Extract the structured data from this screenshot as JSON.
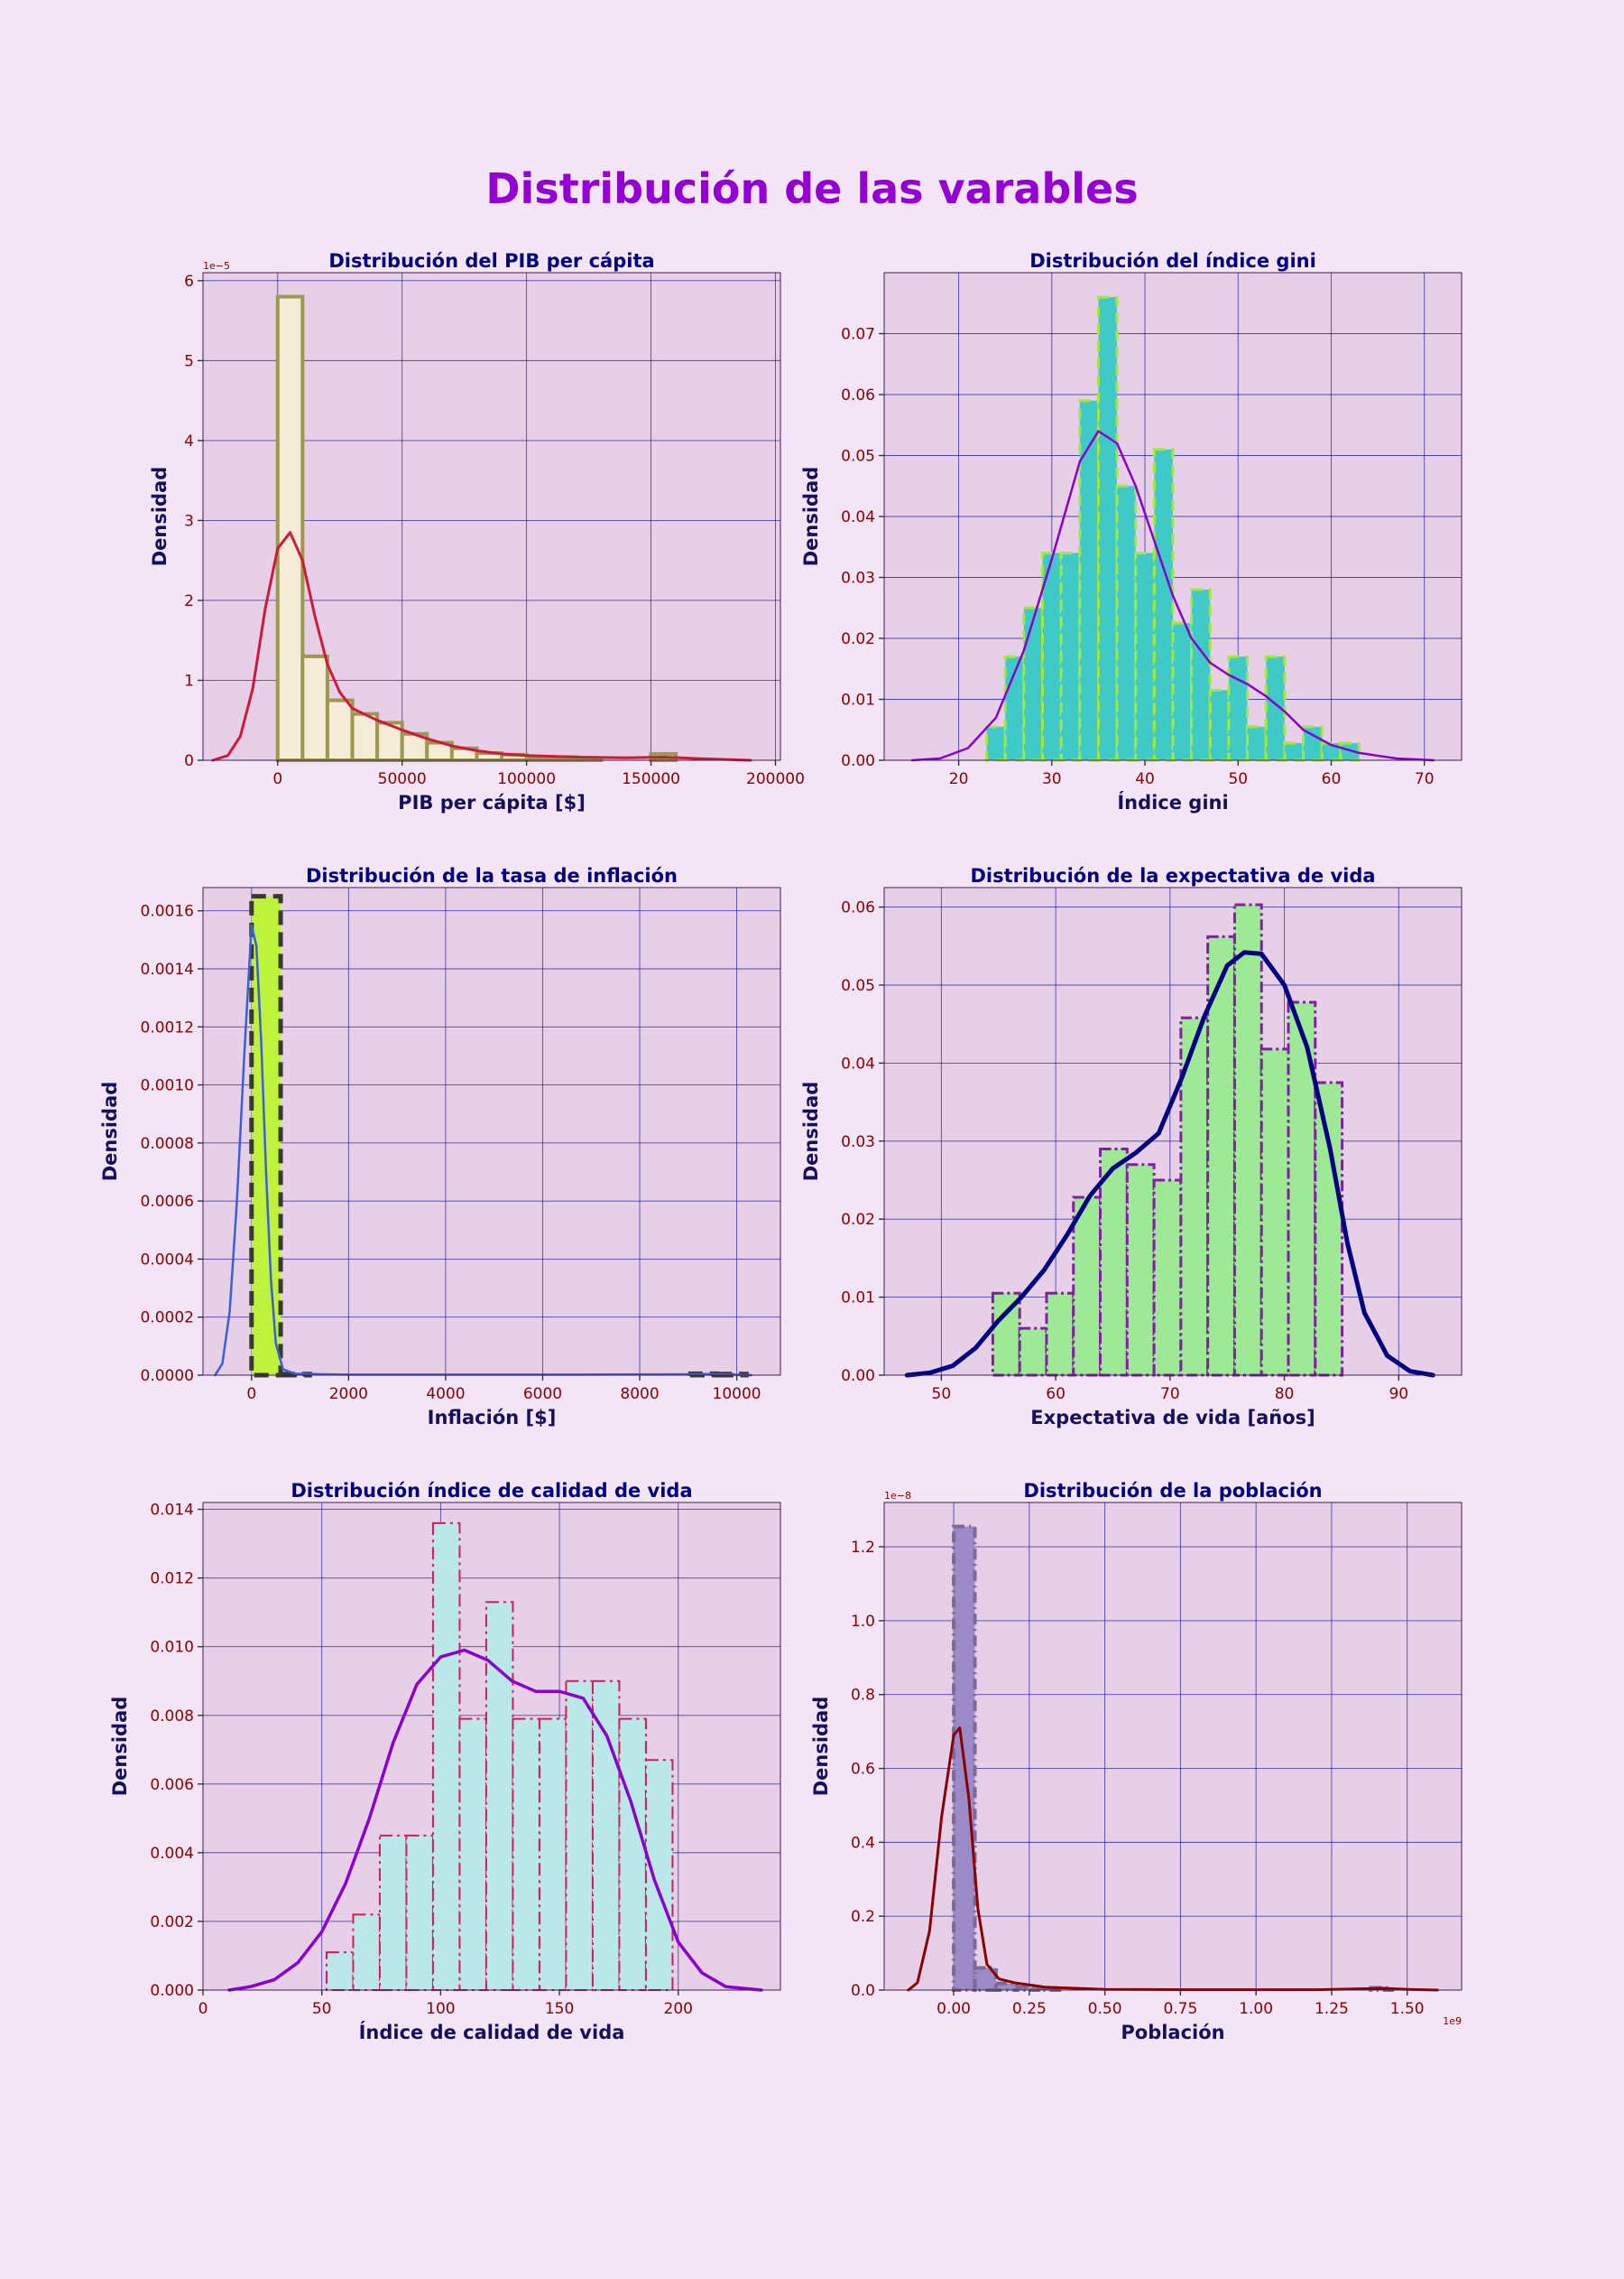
{
  "title": "Distribución de las varables",
  "colors": {
    "background": "#f3e5f5",
    "plot_background": "#e7cfe8",
    "title": "#9400d3",
    "subtitle": "#000080",
    "tick_labels": "#8b0000"
  },
  "chart_data": [
    {
      "type": "bar",
      "title": "Distribución del PIB per cápita",
      "xlabel": "PIB per cápita [$]",
      "ylabel": "Densidad",
      "y_exponent_label": "1e−5",
      "x_exponent_label": "",
      "xlim": [
        -30000,
        202000
      ],
      "ylim": [
        0,
        6.1
      ],
      "xticks": [
        0,
        50000,
        100000,
        150000,
        200000
      ],
      "xtick_labels": [
        "0",
        "50000",
        "100000",
        "150000",
        "200000"
      ],
      "yticks": [
        0,
        1,
        2,
        3,
        4,
        5,
        6
      ],
      "ytick_labels": [
        "0",
        "1",
        "2",
        "3",
        "4",
        "5",
        "6"
      ],
      "style": {
        "fill": "#f5ecd7",
        "edge": "#9c9850",
        "dash": "",
        "line_width": 4,
        "kde_color": "#cc1a3a",
        "kde_width": 3
      },
      "bin_width": 10000,
      "bins": [
        [
          0,
          5.8
        ],
        [
          10000,
          1.3
        ],
        [
          20000,
          0.75
        ],
        [
          30000,
          0.58
        ],
        [
          40000,
          0.47
        ],
        [
          50000,
          0.33
        ],
        [
          60000,
          0.22
        ],
        [
          70000,
          0.15
        ],
        [
          80000,
          0.09
        ],
        [
          90000,
          0.07
        ],
        [
          100000,
          0.04
        ],
        [
          110000,
          0.04
        ],
        [
          120000,
          0.02
        ],
        [
          150000,
          0.08
        ]
      ],
      "kde": [
        [
          -26000,
          0.0
        ],
        [
          -20000,
          0.06
        ],
        [
          -15000,
          0.3
        ],
        [
          -10000,
          0.9
        ],
        [
          -5000,
          1.9
        ],
        [
          0,
          2.65
        ],
        [
          5000,
          2.85
        ],
        [
          10000,
          2.5
        ],
        [
          15000,
          1.8
        ],
        [
          20000,
          1.2
        ],
        [
          25000,
          0.85
        ],
        [
          30000,
          0.65
        ],
        [
          40000,
          0.5
        ],
        [
          50000,
          0.38
        ],
        [
          60000,
          0.27
        ],
        [
          70000,
          0.18
        ],
        [
          80000,
          0.12
        ],
        [
          90000,
          0.08
        ],
        [
          100000,
          0.06
        ],
        [
          110000,
          0.05
        ],
        [
          120000,
          0.04
        ],
        [
          140000,
          0.03
        ],
        [
          155000,
          0.04
        ],
        [
          170000,
          0.02
        ],
        [
          190000,
          0.0
        ]
      ]
    },
    {
      "type": "bar",
      "title": "Distribución del índice gini",
      "xlabel": "Índice gini",
      "ylabel": "Densidad",
      "y_exponent_label": "",
      "x_exponent_label": "",
      "xlim": [
        12,
        74
      ],
      "ylim": [
        0,
        0.08
      ],
      "xticks": [
        20,
        30,
        40,
        50,
        60,
        70
      ],
      "xtick_labels": [
        "20",
        "30",
        "40",
        "50",
        "60",
        "70"
      ],
      "yticks": [
        0,
        0.01,
        0.02,
        0.03,
        0.04,
        0.05,
        0.06,
        0.07
      ],
      "ytick_labels": [
        "0.00",
        "0.01",
        "0.02",
        "0.03",
        "0.04",
        "0.05",
        "0.06",
        "0.07"
      ],
      "style": {
        "fill": "#3fcac8",
        "edge": "#a3e83a",
        "dash": "12,7",
        "line_width": 3,
        "kde_color": "#8a00cc",
        "kde_width": 2.5
      },
      "bin_width": 2,
      "bins": [
        [
          23,
          0.0055
        ],
        [
          25,
          0.017
        ],
        [
          27,
          0.025
        ],
        [
          29,
          0.034
        ],
        [
          31,
          0.034
        ],
        [
          33,
          0.059
        ],
        [
          35,
          0.076
        ],
        [
          37,
          0.045
        ],
        [
          39,
          0.034
        ],
        [
          41,
          0.051
        ],
        [
          43,
          0.0225
        ],
        [
          45,
          0.028
        ],
        [
          47,
          0.0115
        ],
        [
          49,
          0.017
        ],
        [
          51,
          0.0055
        ],
        [
          53,
          0.017
        ],
        [
          55,
          0.0028
        ],
        [
          57,
          0.0055
        ],
        [
          59,
          0.0028
        ],
        [
          61,
          0.0028
        ]
      ],
      "kde": [
        [
          15,
          0.0
        ],
        [
          18,
          0.0003
        ],
        [
          21,
          0.002
        ],
        [
          24,
          0.007
        ],
        [
          27,
          0.018
        ],
        [
          30,
          0.033
        ],
        [
          33,
          0.049
        ],
        [
          35,
          0.054
        ],
        [
          37,
          0.052
        ],
        [
          39,
          0.045
        ],
        [
          41,
          0.036
        ],
        [
          43,
          0.027
        ],
        [
          45,
          0.02
        ],
        [
          47,
          0.016
        ],
        [
          49,
          0.014
        ],
        [
          51,
          0.0125
        ],
        [
          53,
          0.0105
        ],
        [
          55,
          0.008
        ],
        [
          57,
          0.005
        ],
        [
          60,
          0.0025
        ],
        [
          63,
          0.0012
        ],
        [
          67,
          0.0003
        ],
        [
          71,
          0.0
        ]
      ]
    },
    {
      "type": "bar",
      "title": "Distribución de la tasa de inflación",
      "xlabel": "Inflación [$]",
      "ylabel": "Densidad",
      "y_exponent_label": "",
      "x_exponent_label": "",
      "xlim": [
        -1000,
        10900
      ],
      "ylim": [
        0,
        0.00168
      ],
      "xticks": [
        0,
        2000,
        4000,
        6000,
        8000,
        10000
      ],
      "xtick_labels": [
        "0",
        "2000",
        "4000",
        "6000",
        "8000",
        "10000"
      ],
      "yticks": [
        0,
        0.0002,
        0.0004,
        0.0006,
        0.0008,
        0.001,
        0.0012,
        0.0014,
        0.0016
      ],
      "ytick_labels": [
        "0.0000",
        "0.0002",
        "0.0004",
        "0.0006",
        "0.0008",
        "0.0010",
        "0.0012",
        "0.0014",
        "0.0016"
      ],
      "style": {
        "fill": "#bff23a",
        "edge": "#3a3a2a",
        "dash": "16,8",
        "line_width": 5,
        "kde_color": "#3a5fd9",
        "kde_width": 2.5
      },
      "bin_width": 600,
      "bins": [
        [
          0,
          0.00165
        ],
        [
          600,
          4e-06
        ],
        [
          9000,
          5e-06
        ],
        [
          9600,
          4e-06
        ]
      ],
      "kde": [
        [
          -750,
          0.0
        ],
        [
          -600,
          4e-05
        ],
        [
          -450,
          0.00022
        ],
        [
          -300,
          0.0006
        ],
        [
          -150,
          0.0011
        ],
        [
          0,
          0.00155
        ],
        [
          100,
          0.00148
        ],
        [
          200,
          0.00115
        ],
        [
          300,
          0.0007
        ],
        [
          400,
          0.00033
        ],
        [
          500,
          0.00011
        ],
        [
          650,
          2e-05
        ],
        [
          900,
          5e-06
        ],
        [
          2000,
          2e-06
        ],
        [
          6000,
          2e-06
        ],
        [
          9000,
          3e-06
        ],
        [
          9500,
          4e-06
        ],
        [
          10300,
          0.0
        ]
      ]
    },
    {
      "type": "bar",
      "title": "Distribución de la expectativa de vida",
      "xlabel": "Expectativa de vida [años]",
      "ylabel": "Densidad",
      "y_exponent_label": "",
      "x_exponent_label": "",
      "xlim": [
        45,
        95.5
      ],
      "ylim": [
        0,
        0.0625
      ],
      "xticks": [
        50,
        60,
        70,
        80,
        90
      ],
      "xtick_labels": [
        "50",
        "60",
        "70",
        "80",
        "90"
      ],
      "yticks": [
        0,
        0.01,
        0.02,
        0.03,
        0.04,
        0.05,
        0.06
      ],
      "ytick_labels": [
        "0.00",
        "0.01",
        "0.02",
        "0.03",
        "0.04",
        "0.05",
        "0.06"
      ],
      "style": {
        "fill": "#9de996",
        "edge": "#8020a0",
        "dash": "12,4,3,4",
        "line_width": 3,
        "kde_color": "#000080",
        "kde_width": 5
      },
      "bin_width": 2.35,
      "bins": [
        [
          54.5,
          0.0105
        ],
        [
          56.85,
          0.006
        ],
        [
          59.2,
          0.0105
        ],
        [
          61.55,
          0.0228
        ],
        [
          63.9,
          0.029
        ],
        [
          66.25,
          0.027
        ],
        [
          68.6,
          0.025
        ],
        [
          70.95,
          0.0458
        ],
        [
          73.3,
          0.0562
        ],
        [
          75.65,
          0.0603
        ],
        [
          78,
          0.0418
        ],
        [
          80.35,
          0.0478
        ],
        [
          82.7,
          0.0375
        ]
      ],
      "kde": [
        [
          47,
          0.0
        ],
        [
          49,
          0.0003
        ],
        [
          51,
          0.0012
        ],
        [
          53,
          0.0035
        ],
        [
          55,
          0.007
        ],
        [
          57,
          0.01
        ],
        [
          59,
          0.0135
        ],
        [
          61,
          0.018
        ],
        [
          63,
          0.023
        ],
        [
          65,
          0.0265
        ],
        [
          67,
          0.0285
        ],
        [
          69,
          0.031
        ],
        [
          71,
          0.038
        ],
        [
          73,
          0.046
        ],
        [
          75,
          0.0525
        ],
        [
          76.5,
          0.0542
        ],
        [
          78,
          0.054
        ],
        [
          80,
          0.05
        ],
        [
          82,
          0.042
        ],
        [
          84,
          0.029
        ],
        [
          85.5,
          0.017
        ],
        [
          87,
          0.008
        ],
        [
          89,
          0.0025
        ],
        [
          91,
          0.0005
        ],
        [
          93,
          0.0
        ]
      ]
    },
    {
      "type": "bar",
      "title": "Distribución índice de calidad de vida",
      "xlabel": "Índice de calidad de vida",
      "ylabel": "Densidad",
      "y_exponent_label": "",
      "x_exponent_label": "",
      "xlim": [
        0,
        243
      ],
      "ylim": [
        0,
        0.0142
      ],
      "xticks": [
        0,
        50,
        100,
        150,
        200
      ],
      "xtick_labels": [
        "0",
        "50",
        "100",
        "150",
        "200"
      ],
      "yticks": [
        0,
        0.002,
        0.004,
        0.006,
        0.008,
        0.01,
        0.012,
        0.014
      ],
      "ytick_labels": [
        "0.000",
        "0.002",
        "0.004",
        "0.006",
        "0.008",
        "0.010",
        "0.012",
        "0.014"
      ],
      "style": {
        "fill": "#bae8e8",
        "edge": "#d91a5a",
        "dash": "14,5,3,5",
        "line_width": 2,
        "kde_color": "#8a00cc",
        "kde_width": 3.5
      },
      "bin_width": 11.2,
      "bins": [
        [
          52,
          0.0011
        ],
        [
          63.2,
          0.0022
        ],
        [
          74.4,
          0.0045
        ],
        [
          85.6,
          0.0045
        ],
        [
          96.8,
          0.0136
        ],
        [
          108,
          0.0079
        ],
        [
          119.2,
          0.0113
        ],
        [
          130.4,
          0.0079
        ],
        [
          141.6,
          0.0079
        ],
        [
          152.8,
          0.009
        ],
        [
          164,
          0.009
        ],
        [
          175.2,
          0.0079
        ],
        [
          186.4,
          0.0067
        ]
      ],
      "kde": [
        [
          11,
          0.0
        ],
        [
          20,
          0.0001
        ],
        [
          30,
          0.0003
        ],
        [
          40,
          0.0008
        ],
        [
          50,
          0.0017
        ],
        [
          60,
          0.0031
        ],
        [
          70,
          0.005
        ],
        [
          80,
          0.0072
        ],
        [
          90,
          0.0089
        ],
        [
          100,
          0.0097
        ],
        [
          110,
          0.0099
        ],
        [
          120,
          0.0096
        ],
        [
          130,
          0.009
        ],
        [
          140,
          0.0087
        ],
        [
          150,
          0.0087
        ],
        [
          160,
          0.0085
        ],
        [
          170,
          0.0074
        ],
        [
          180,
          0.0055
        ],
        [
          190,
          0.0032
        ],
        [
          200,
          0.0014
        ],
        [
          210,
          0.0005
        ],
        [
          220,
          0.0001
        ],
        [
          235,
          0.0
        ]
      ]
    },
    {
      "type": "bar",
      "title": "Distribución de la población",
      "xlabel": "Población",
      "ylabel": "Densidad",
      "y_exponent_label": "1e−8",
      "x_exponent_label": "1e9",
      "xlim": [
        -0.23,
        1.68
      ],
      "ylim": [
        0,
        1.32
      ],
      "xticks": [
        0,
        0.25,
        0.5,
        0.75,
        1.0,
        1.25,
        1.5
      ],
      "xtick_labels": [
        "0.00",
        "0.25",
        "0.50",
        "0.75",
        "1.00",
        "1.25",
        "1.50"
      ],
      "yticks": [
        0,
        0.2,
        0.4,
        0.6,
        0.8,
        1.0,
        1.2
      ],
      "ytick_labels": [
        "0.0",
        "0.2",
        "0.4",
        "0.6",
        "0.8",
        "1.0",
        "1.2"
      ],
      "style": {
        "fill": "#9b8ac8",
        "edge": "#7b6a98",
        "dash": "12,5,2,5",
        "line_width": 4,
        "kde_color": "#8b0000",
        "kde_width": 3
      },
      "bin_width": 0.07,
      "bins": [
        [
          0,
          1.255
        ],
        [
          0.07,
          0.06
        ],
        [
          0.14,
          0.018
        ],
        [
          0.21,
          0.008
        ],
        [
          0.28,
          0.004
        ],
        [
          1.38,
          0.006
        ]
      ],
      "kde": [
        [
          -0.15,
          0.0
        ],
        [
          -0.12,
          0.02
        ],
        [
          -0.08,
          0.16
        ],
        [
          -0.04,
          0.47
        ],
        [
          0.0,
          0.69
        ],
        [
          0.02,
          0.71
        ],
        [
          0.05,
          0.52
        ],
        [
          0.08,
          0.22
        ],
        [
          0.11,
          0.07
        ],
        [
          0.15,
          0.03
        ],
        [
          0.2,
          0.02
        ],
        [
          0.3,
          0.008
        ],
        [
          0.5,
          0.002
        ],
        [
          0.8,
          0.001
        ],
        [
          1.2,
          0.001
        ],
        [
          1.38,
          0.004
        ],
        [
          1.42,
          0.005
        ],
        [
          1.5,
          0.002
        ],
        [
          1.6,
          0.0
        ]
      ]
    }
  ]
}
